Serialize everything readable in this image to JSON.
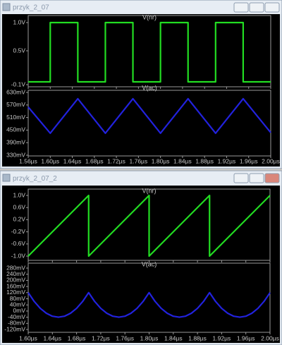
{
  "windows": [
    {
      "title": "przyk_2_07",
      "xlim": [
        1.56,
        2.0
      ],
      "xticks": [
        {
          "value": 1.56,
          "label": "1.56µs"
        },
        {
          "value": 1.6,
          "label": "1.60µs"
        },
        {
          "value": 1.64,
          "label": "1.64µs"
        },
        {
          "value": 1.68,
          "label": "1.68µs"
        },
        {
          "value": 1.72,
          "label": "1.72µs"
        },
        {
          "value": 1.76,
          "label": "1.76µs"
        },
        {
          "value": 1.8,
          "label": "1.80µs"
        },
        {
          "value": 1.84,
          "label": "1.84µs"
        },
        {
          "value": 1.88,
          "label": "1.88µs"
        },
        {
          "value": 1.92,
          "label": "1.92µs"
        },
        {
          "value": 1.96,
          "label": "1.96µs"
        },
        {
          "value": 2.0,
          "label": "2.00µs"
        }
      ],
      "plots": [
        {
          "label": "V(nr)",
          "color": "#22dd22",
          "ylim": [
            -0.1,
            1.0
          ],
          "yticks": [
            {
              "value": 1.0,
              "label": "1.0V"
            },
            {
              "value": 0.5,
              "label": "0.5V"
            },
            {
              "value": -0.1,
              "label": "-0.1V"
            }
          ],
          "x": [
            1.56,
            1.6,
            1.6,
            1.65,
            1.65,
            1.7,
            1.7,
            1.75,
            1.75,
            1.8,
            1.8,
            1.85,
            1.85,
            1.9,
            1.9,
            1.95,
            1.95,
            2.0
          ],
          "y": [
            -0.05,
            -0.05,
            1,
            1,
            -0.05,
            -0.05,
            1,
            1,
            -0.05,
            -0.05,
            1,
            1,
            -0.05,
            -0.05,
            1,
            1,
            -0.05,
            -0.05
          ]
        },
        {
          "label": "V(ac)",
          "color": "#2222dd",
          "ylim": [
            330,
            630
          ],
          "yticks": [
            {
              "value": 630,
              "label": "630mV"
            },
            {
              "value": 570,
              "label": "570mV"
            },
            {
              "value": 510,
              "label": "510mV"
            },
            {
              "value": 450,
              "label": "450mV"
            },
            {
              "value": 390,
              "label": "390mV"
            },
            {
              "value": 330,
              "label": "330mV"
            }
          ],
          "x": [
            1.56,
            1.6,
            1.65,
            1.7,
            1.75,
            1.8,
            1.85,
            1.9,
            1.95,
            2.0
          ],
          "y": [
            560,
            435,
            600,
            435,
            600,
            435,
            600,
            435,
            600,
            438
          ]
        }
      ]
    },
    {
      "title": "przyk_2_07_2",
      "xlim": [
        1.6,
        2.0
      ],
      "xticks": [
        {
          "value": 1.6,
          "label": "1.60µs"
        },
        {
          "value": 1.64,
          "label": "1.64µs"
        },
        {
          "value": 1.68,
          "label": "1.68µs"
        },
        {
          "value": 1.72,
          "label": "1.72µs"
        },
        {
          "value": 1.76,
          "label": "1.76µs"
        },
        {
          "value": 1.8,
          "label": "1.80µs"
        },
        {
          "value": 1.84,
          "label": "1.84µs"
        },
        {
          "value": 1.88,
          "label": "1.88µs"
        },
        {
          "value": 1.92,
          "label": "1.92µs"
        },
        {
          "value": 1.96,
          "label": "1.96µs"
        },
        {
          "value": 2.0,
          "label": "2.00µs"
        }
      ],
      "plots": [
        {
          "label": "V(nr)",
          "color": "#22dd22",
          "ylim": [
            -1.0,
            1.0
          ],
          "yticks": [
            {
              "value": 1.0,
              "label": "1.0V"
            },
            {
              "value": 0.6,
              "label": "0.6V"
            },
            {
              "value": 0.2,
              "label": "0.2V"
            },
            {
              "value": -0.2,
              "label": "-0.2V"
            },
            {
              "value": -0.6,
              "label": "-0.6V"
            },
            {
              "value": -1.0,
              "label": "-1.0V"
            }
          ],
          "x": [
            1.6,
            1.7,
            1.7,
            1.8,
            1.8,
            1.9,
            1.9,
            2.0
          ],
          "y": [
            -1,
            1,
            -1,
            1,
            -1,
            1,
            -1,
            1
          ]
        },
        {
          "label": "V(ac)",
          "color": "#2222dd",
          "ylim": [
            -120,
            280
          ],
          "yticks": [
            {
              "value": 280,
              "label": "280mV"
            },
            {
              "value": 240,
              "label": "240mV"
            },
            {
              "value": 200,
              "label": "200mV"
            },
            {
              "value": 160,
              "label": "160mV"
            },
            {
              "value": 120,
              "label": "120mV"
            },
            {
              "value": 80,
              "label": "80mV"
            },
            {
              "value": 40,
              "label": "40mV"
            },
            {
              "value": 0,
              "label": "0mV"
            },
            {
              "value": -40,
              "label": "-40mV"
            },
            {
              "value": -80,
              "label": "-80mV"
            },
            {
              "value": -120,
              "label": "-120mV"
            }
          ],
          "x": [
            1.6,
            1.61,
            1.62,
            1.63,
            1.64,
            1.65,
            1.66,
            1.67,
            1.68,
            1.69,
            1.7,
            1.71,
            1.72,
            1.73,
            1.74,
            1.75,
            1.76,
            1.77,
            1.78,
            1.79,
            1.8,
            1.81,
            1.82,
            1.83,
            1.84,
            1.85,
            1.86,
            1.87,
            1.88,
            1.89,
            1.9,
            1.91,
            1.92,
            1.93,
            1.94,
            1.95,
            1.96,
            1.97,
            1.98,
            1.99,
            2.0
          ],
          "y": [
            120,
            62.4,
            17.6,
            -14.4,
            -33.6,
            -40,
            -33.6,
            -14.4,
            17.6,
            62.4,
            120,
            62.4,
            17.6,
            -14.4,
            -33.6,
            -40,
            -33.6,
            -14.4,
            17.6,
            62.4,
            120,
            62.4,
            17.6,
            -14.4,
            -33.6,
            -40,
            -33.6,
            -14.4,
            17.6,
            62.4,
            120,
            62.4,
            17.6,
            -14.4,
            -33.6,
            -40,
            -33.6,
            -14.4,
            17.6,
            62.4,
            120
          ]
        }
      ]
    }
  ]
}
